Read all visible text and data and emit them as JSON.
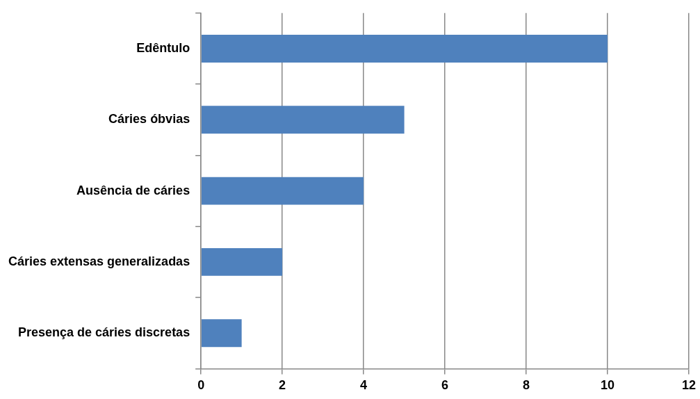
{
  "chart_data": {
    "type": "bar",
    "orientation": "horizontal",
    "categories": [
      "Edêntulo",
      "Cáries óbvias",
      "Ausência de cáries",
      "Cáries extensas generalizadas",
      "Presença de cáries discretas"
    ],
    "values": [
      10,
      5,
      4,
      2,
      1
    ],
    "color": "#4f81bd",
    "xlim": [
      0,
      12
    ],
    "xticks": [
      0,
      2,
      4,
      6,
      8,
      10,
      12
    ],
    "grid": "x",
    "legend": false
  }
}
